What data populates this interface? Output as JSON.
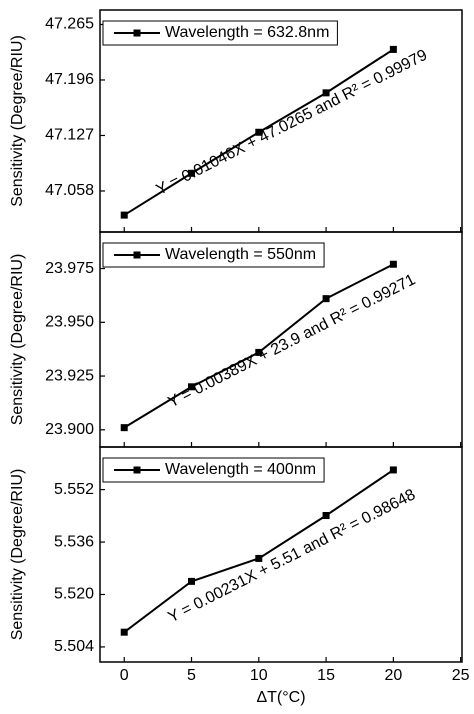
{
  "chart_data": [
    {
      "type": "line",
      "ylabel": "Sensitivity (Degree/RIU)",
      "annotation": "Y = 0.01046X + 47.0265  and R² = 0.99979",
      "x": [
        0,
        5,
        10,
        15,
        20
      ],
      "series": [
        {
          "name": "Wavelength = 632.8nm",
          "color": "#000000",
          "values": [
            47.028,
            47.08,
            47.131,
            47.18,
            47.234
          ]
        }
      ],
      "xlim": [
        -1.8,
        25.1
      ],
      "ylim": [
        47.007,
        47.283
      ],
      "yticks": [
        47.058,
        47.127,
        47.196,
        47.265
      ]
    },
    {
      "type": "line",
      "ylabel": "Sensitivity (Degree/RIU)",
      "annotation": "Y = 0.00389X + 23.9  and R² = 0.99271",
      "x": [
        0,
        5,
        10,
        15,
        20
      ],
      "series": [
        {
          "name": "Wavelength = 550nm",
          "color": "#000000",
          "values": [
            23.901,
            23.92,
            23.936,
            23.961,
            23.977
          ]
        }
      ],
      "xlim": [
        -1.8,
        25.1
      ],
      "ylim": [
        23.892,
        23.992
      ],
      "yticks": [
        {
          "value": 23.9,
          "label": "23.900"
        },
        23.925,
        {
          "value": 23.95,
          "label": "23.950"
        },
        23.975
      ]
    },
    {
      "type": "line",
      "ylabel": "Sensitivity (Degree/RIU)",
      "annotation": "Y = 0.00231X + 5.51  and R² = 0.98648",
      "x": [
        0,
        5,
        10,
        15,
        20
      ],
      "series": [
        {
          "name": "Wavelength = 400nm",
          "color": "#000000",
          "values": [
            5.5085,
            5.524,
            5.531,
            5.5441,
            5.558
          ]
        }
      ],
      "xlim": [
        -1.8,
        25.1
      ],
      "ylim": [
        5.4994,
        5.565
      ],
      "yticks": [
        5.504,
        {
          "value": 5.52,
          "label": "5.520"
        },
        5.536,
        5.552
      ],
      "xticks": [
        0,
        5,
        10,
        15,
        20,
        25
      ],
      "xlabel": "ΔT(°C)"
    }
  ]
}
